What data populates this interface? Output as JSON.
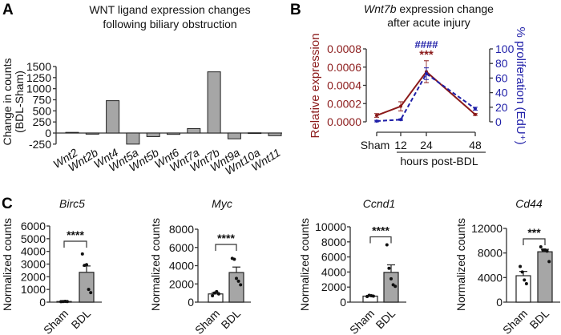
{
  "panels": {
    "a": "A",
    "b": "B",
    "c": "C"
  },
  "chart_data": [
    {
      "id": "A",
      "type": "bar",
      "title_lines": [
        "WNT ligand expression changes",
        "following biliary obstruction"
      ],
      "ylabel_lines": [
        "Change in counts",
        "(BDL-Sham)"
      ],
      "xlabel": "",
      "categories": [
        "Wnt2",
        "Wnt2b",
        "Wnt4",
        "Wnt5a",
        "Wnt5b",
        "Wnt6",
        "Wnt7a",
        "Wnt7b",
        "Wnt9a",
        "Wnt10a",
        "Wnt11"
      ],
      "values": [
        15,
        -25,
        730,
        -250,
        -80,
        -30,
        100,
        1380,
        -130,
        5,
        -60
      ],
      "yticks": [
        "1500",
        "1250",
        "1000",
        "750",
        "500",
        "250",
        "0",
        "-250"
      ],
      "ylim": [
        -250,
        1500
      ],
      "bar_color": "#a6a6a6"
    },
    {
      "id": "B",
      "type": "line",
      "title_italic": "Wnt7b",
      "title_rest": " expression change",
      "title_line2": "after acute injury",
      "ylabel": "Relative expression",
      "ylabel_right": "% proliferation (EdU⁺)",
      "x": [
        "Sham",
        "12",
        "24",
        "48"
      ],
      "x_hours": [
        0,
        12,
        24,
        48
      ],
      "xlabel": "hours post-BDL",
      "yticks": [
        "0.0000",
        "0.0002",
        "0.0004",
        "0.0006",
        "0.0008"
      ],
      "yticks_right": [
        "0",
        "20",
        "40",
        "60",
        "80",
        "100"
      ],
      "ylim": [
        0,
        0.0008
      ],
      "ylim_right": [
        0,
        100
      ],
      "series": [
        {
          "axis": "left",
          "style": "solid",
          "color": "#8b1a1a",
          "values": [
            7e-05,
            0.00017,
            0.00055,
            8e-05
          ],
          "errors": [
            2e-05,
            5e-05,
            0.00012,
            1e-05
          ]
        },
        {
          "axis": "right",
          "style": "dashed",
          "color": "#1f1fa8",
          "values": [
            1,
            3,
            66,
            18
          ],
          "errors": [
            1,
            1,
            8,
            2
          ]
        }
      ],
      "annotations": [
        {
          "text": "####",
          "color": "#1f1fa8"
        },
        {
          "text": "***",
          "color": "#8b1a1a"
        }
      ]
    },
    {
      "id": "C-Birc5",
      "type": "bar",
      "title": "Birc5",
      "ylabel": "Normalized counts",
      "categories": [
        "Sham",
        "BDL"
      ],
      "ylim": [
        0,
        6000
      ],
      "yticks": [
        "0",
        "1000",
        "2000",
        "3000",
        "4000",
        "5000",
        "6000"
      ],
      "values": [
        50,
        2350
      ],
      "errors": [
        10,
        500
      ],
      "points": [
        [
          40,
          50,
          60,
          50
        ],
        [
          3800,
          2900,
          2950,
          1000,
          750
        ]
      ],
      "significance": "****",
      "bar_colors": [
        "#ffffff",
        "#a6a6a6"
      ]
    },
    {
      "id": "C-Myc",
      "type": "bar",
      "title": "Myc",
      "ylabel": "Normalized counts",
      "categories": [
        "Sham",
        "BDL"
      ],
      "ylim": [
        0,
        8000
      ],
      "yticks": [
        "0",
        "2000",
        "4000",
        "6000",
        "8000"
      ],
      "values": [
        900,
        3250
      ],
      "errors": [
        150,
        600
      ],
      "points": [
        [
          700,
          1000,
          1150,
          900
        ],
        [
          4800,
          4700,
          2600,
          2300,
          1900
        ]
      ],
      "significance": "****",
      "bar_colors": [
        "#ffffff",
        "#a6a6a6"
      ]
    },
    {
      "id": "C-Ccnd1",
      "type": "bar",
      "title": "Ccnd1",
      "ylabel": "Normalized counts",
      "categories": [
        "Sham",
        "BDL"
      ],
      "ylim": [
        0,
        10000
      ],
      "yticks": [
        "0",
        "2000",
        "4000",
        "6000",
        "8000",
        "10000"
      ],
      "values": [
        800,
        3950
      ],
      "errors": [
        100,
        1000
      ],
      "points": [
        [
          750,
          900,
          850,
          800
        ],
        [
          7600,
          4500,
          3100,
          2300,
          2100
        ]
      ],
      "significance": "****",
      "bar_colors": [
        "#ffffff",
        "#a6a6a6"
      ]
    },
    {
      "id": "C-Cd44",
      "type": "bar",
      "title": "Cd44",
      "ylabel": "Normalized counts",
      "categories": [
        "Sham",
        "BDL"
      ],
      "ylim": [
        0,
        12000
      ],
      "yticks": [
        "0",
        "4000",
        "8000",
        "12000"
      ],
      "values": [
        4300,
        8200
      ],
      "errors": [
        700,
        400
      ],
      "points": [
        [
          5800,
          4900,
          3600,
          3000
        ],
        [
          9000,
          8500,
          8500,
          8300,
          6600
        ]
      ],
      "significance": "***",
      "bar_colors": [
        "#ffffff",
        "#a6a6a6"
      ]
    }
  ]
}
